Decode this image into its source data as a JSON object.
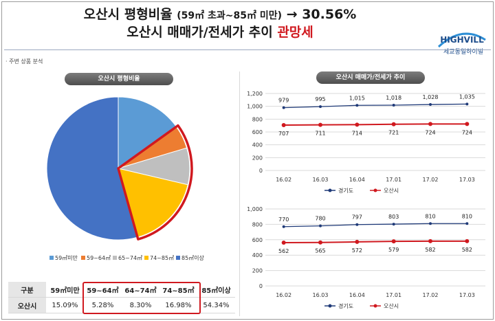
{
  "header": {
    "title_line1_prefix": "오산시 평형비율",
    "title_line1_range": "(59㎡ 초과~85㎡ 미만)",
    "title_line1_suffix": "→ 30.56%",
    "title_line2_prefix": "오산시 매매가/전세가 추이",
    "title_line2_highlight": "관망세",
    "logo_text": "HIGHVILL",
    "logo_subtext": "세교동일하이빌"
  },
  "section_label": "· 주변 상품 분석",
  "pie_panel": {
    "title": "오산시 평형비율",
    "highlight_color": "#d0191f"
  },
  "line_panel": {
    "title": "오산시 매매가/전세가 추이"
  },
  "chart_data": [
    {
      "type": "pie",
      "title": "오산시 평형비율",
      "slices": [
        {
          "label": "59㎡미만",
          "value": 15.09,
          "color": "#5b9bd5"
        },
        {
          "label": "59~64㎡",
          "value": 5.28,
          "color": "#ed7d31"
        },
        {
          "label": "65~74㎡",
          "value": 8.3,
          "color": "#bfbfbf"
        },
        {
          "label": "74~85㎡",
          "value": 16.98,
          "color": "#ffc000"
        },
        {
          "label": "85㎡이상",
          "value": 54.34,
          "color": "#4472c4"
        }
      ],
      "legend_position": "bottom"
    },
    {
      "type": "line",
      "title": "",
      "categories": [
        "16.02",
        "16.03",
        "16.04",
        "17.01",
        "17.02",
        "17.03"
      ],
      "ylim": [
        0,
        1200
      ],
      "yticks": [
        "0",
        "200",
        "400",
        "600",
        "800",
        "1,000",
        "1,200"
      ],
      "series": [
        {
          "name": "경기도",
          "color": "#1f3a78",
          "values": [
            979,
            995,
            1015,
            1018,
            1028,
            1035
          ],
          "labels": [
            "979",
            "995",
            "1,015",
            "1,018",
            "1,028",
            "1,035"
          ]
        },
        {
          "name": "오산시",
          "color": "#d0191f",
          "values": [
            707,
            711,
            714,
            721,
            724,
            724
          ],
          "labels": [
            "707",
            "711",
            "714",
            "721",
            "724",
            "724"
          ]
        }
      ],
      "grid": true,
      "legend_position": "bottom"
    },
    {
      "type": "line",
      "title": "",
      "categories": [
        "16.02",
        "16.03",
        "16.04",
        "17.01",
        "17.02",
        "17.03"
      ],
      "ylim": [
        0,
        1000
      ],
      "yticks": [
        "0",
        "200",
        "400",
        "600",
        "800",
        "1,000"
      ],
      "series": [
        {
          "name": "경기도",
          "color": "#1f3a78",
          "values": [
            770,
            780,
            797,
            803,
            810,
            810
          ],
          "labels": [
            "770",
            "780",
            "797",
            "803",
            "810",
            "810"
          ]
        },
        {
          "name": "오산시",
          "color": "#d0191f",
          "values": [
            562,
            565,
            572,
            579,
            582,
            582
          ],
          "labels": [
            "562",
            "565",
            "572",
            "579",
            "582",
            "582"
          ]
        }
      ],
      "grid": true,
      "legend_position": "bottom"
    }
  ],
  "ratio_table": {
    "headers": [
      "구분",
      "59㎡미만",
      "59~64㎡",
      "64~74㎡",
      "74~85㎡",
      "85㎡이상"
    ],
    "row": [
      "오산시",
      "15.09%",
      "5.28%",
      "8.30%",
      "16.98%",
      "54.34%"
    ]
  }
}
